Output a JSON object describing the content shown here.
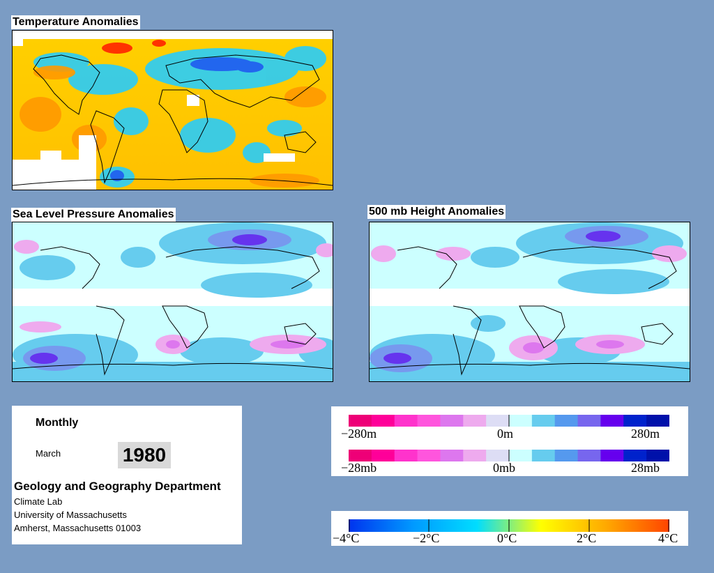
{
  "panels": {
    "temperature": {
      "title": "Temperature Anomalies"
    },
    "slp": {
      "title": "Sea Level Pressure Anomalies"
    },
    "h500": {
      "title": "500 mb Height Anomalies"
    }
  },
  "info": {
    "frequency": "Monthly",
    "month": "March",
    "year": "1980",
    "department": "Geology and Geography Department",
    "address_lines": [
      "Climate Lab",
      "University of Massachusetts",
      "Amherst, Massachusetts 01003"
    ]
  },
  "legend_height": {
    "labels": [
      "−280m",
      "0m",
      "280m"
    ],
    "colors": [
      "#ee0077",
      "#ff0099",
      "#ff33cc",
      "#ff55dd",
      "#dd77ee",
      "#eeaaee",
      "#ddddf5",
      "#ccffff",
      "#66ccee",
      "#5599ee",
      "#7766ee",
      "#6600ee",
      "#0022cc",
      "#0011aa"
    ]
  },
  "legend_pressure": {
    "labels": [
      "−28mb",
      "0mb",
      "28mb"
    ],
    "colors": [
      "#ee0077",
      "#ff0099",
      "#ff33cc",
      "#ff55dd",
      "#dd77ee",
      "#eeaaee",
      "#ddddf5",
      "#ccffff",
      "#66ccee",
      "#5599ee",
      "#7766ee",
      "#6600ee",
      "#0022cc",
      "#0011aa"
    ]
  },
  "legend_temperature": {
    "labels": [
      "−4°C",
      "−2°C",
      "0°C",
      "2°C",
      "4°C"
    ],
    "colors": [
      "#0033ee",
      "#0099ff",
      "#00ddff",
      "#ffff00",
      "#ffaa00",
      "#ff4400"
    ]
  }
}
